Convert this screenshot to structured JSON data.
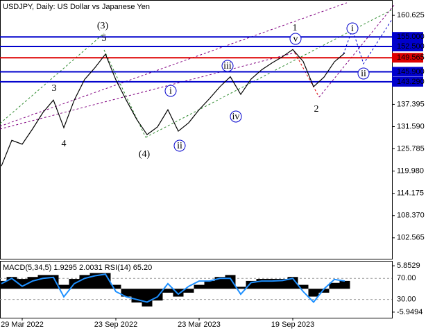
{
  "chart_data": [
    {
      "type": "line",
      "title": "USDJPY, Daily:  US Dollar vs Japanese Yen",
      "categories": [
        null,
        null,
        "29 Mar 2022",
        null,
        null,
        null,
        null,
        null,
        null,
        null,
        null,
        "23 Sep 2022",
        null,
        null,
        null,
        null,
        null,
        null,
        null,
        "23 Mar 2023",
        null,
        null,
        null,
        null,
        null,
        null,
        null,
        null,
        "19 Sep 2023",
        null,
        null,
        null,
        null,
        null
      ],
      "values": [
        121.3,
        128.0,
        127.0,
        131.0,
        135.3,
        138.5,
        131.3,
        138.5,
        143.9,
        147.0,
        150.5,
        143.8,
        138.5,
        133.5,
        129.5,
        131.5,
        136.0,
        130.4,
        132.6,
        136.0,
        138.9,
        142.0,
        144.6,
        140.0,
        144.0,
        146.4,
        148.2,
        149.8,
        151.7,
        148.6,
        142.0,
        144.5,
        148.5,
        150.8
      ],
      "color": "#000000",
      "ylim": [
        97.1,
        164.63
      ],
      "yticks": [
        160.625,
        137.395,
        {
          "value": 131.59,
          "label": "131.590"
        },
        125.785,
        {
          "value": 119.98,
          "label": "119.980"
        },
        114.175,
        {
          "value": 108.37,
          "label": "108.370"
        },
        102.565
      ],
      "levels": [
        {
          "value": 155,
          "label": "155.000"
        },
        {
          "value": 152.5,
          "label": "152.500"
        },
        149.565,
        {
          "value": 145.9,
          "label": "145.900"
        },
        {
          "value": 143.29,
          "label": "143.290"
        }
      ],
      "level_colors": [
        "#0000cc",
        "#0000cc",
        "#dd0000",
        "#0000cc",
        "#0000cc"
      ],
      "annotations": [
        "(3)",
        "5",
        "3",
        "4",
        "(4)",
        "i",
        "ii",
        "iii",
        "iv",
        "v",
        "1",
        "2",
        "i",
        "ii"
      ]
    },
    {
      "type": "macd",
      "title": "MACD(5,34,5) 1.9295 2.0031 RSI(14) 65.20",
      "ylim": [
        -7.38,
        6.93
      ],
      "yticks": [
        5.8529,
        -5.9494
      ],
      "y2lim": [
        -4.7,
        102
      ],
      "y2ticks": [
        {
          "value": 70,
          "label": "70.00"
        },
        {
          "value": 30,
          "label": "30.00"
        }
      ],
      "series": [
        {
          "name": "MACD",
          "color": "#000000",
          "values": [
            2,
            3,
            2.5,
            3,
            3.5,
            3.5,
            1,
            2.5,
            3.5,
            4,
            4,
            1,
            -2,
            -3.5,
            -4.5,
            -3,
            -1,
            -2,
            -1,
            1,
            2,
            3,
            3.5,
            0.5,
            2,
            2.5,
            2.5,
            2.5,
            3,
            1,
            -2,
            -1,
            1.5,
            2
          ]
        },
        {
          "name": "RSI",
          "color": "#1e90ff",
          "axis": "y2",
          "values": [
            60,
            70,
            55,
            65,
            70,
            72,
            35,
            60,
            70,
            75,
            78,
            45,
            35,
            30,
            25,
            35,
            60,
            40,
            55,
            65,
            65,
            70,
            70,
            40,
            62,
            65,
            65,
            66,
            70,
            45,
            25,
            50,
            68,
            65
          ]
        }
      ]
    }
  ]
}
